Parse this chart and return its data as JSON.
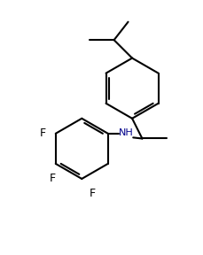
{
  "background_color": "#ffffff",
  "line_color": "#000000",
  "nh_color": "#00008B",
  "f_color": "#000000",
  "line_width": 1.5,
  "figsize": [
    2.3,
    2.88
  ],
  "dpi": 100,
  "xlim": [
    0,
    10
  ],
  "ylim": [
    0,
    12.5
  ]
}
